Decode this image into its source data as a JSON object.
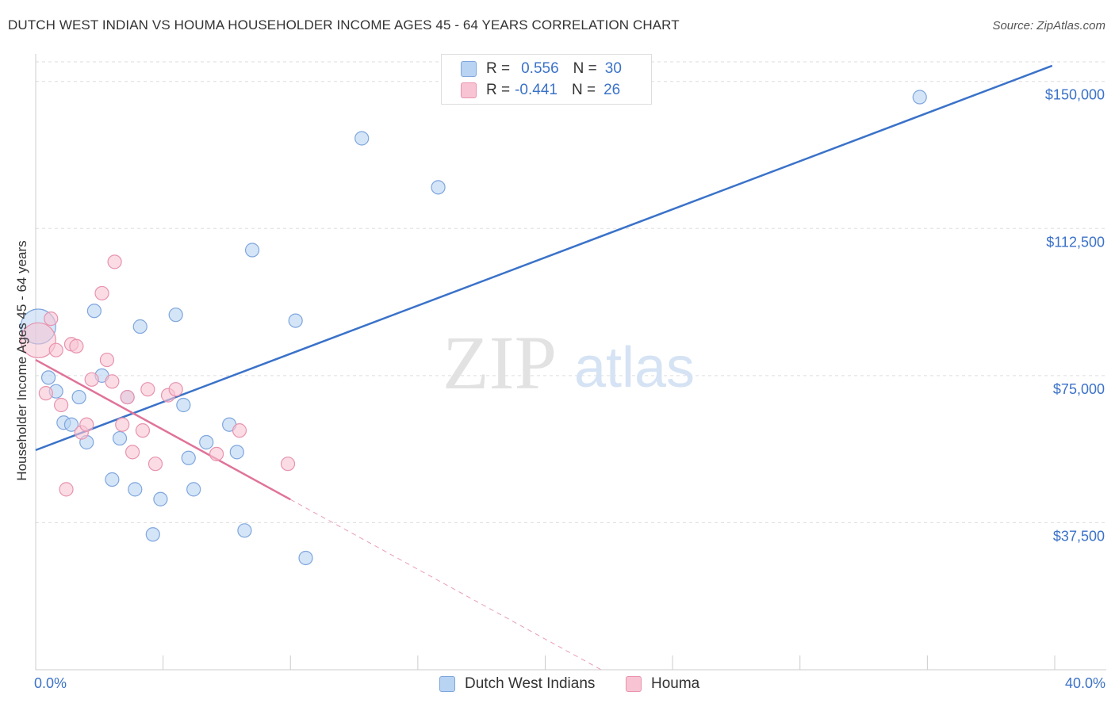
{
  "title": "DUTCH WEST INDIAN VS HOUMA HOUSEHOLDER INCOME AGES 45 - 64 YEARS CORRELATION CHART",
  "source": "Source: ZipAtlas.com",
  "watermark": {
    "zip": "ZIP",
    "atlas": "atlas"
  },
  "legend": {
    "rows": [
      {
        "r_label": "R =",
        "r_value": "0.556",
        "n_label": "N =",
        "n_value": "30"
      },
      {
        "r_label": "R =",
        "r_value": "-0.441",
        "n_label": "N =",
        "n_value": "26"
      }
    ]
  },
  "colors": {
    "blue_fill": "#b9d3f3",
    "blue_stroke": "#7ea6dd",
    "blue_line": "#3a72c9",
    "pink_fill": "#f8c4d3",
    "pink_stroke": "#e893ae",
    "pink_line": "#e07399",
    "grid": "#dddddd",
    "axis_label": "#3b72c8"
  },
  "chart_data": {
    "type": "scatter",
    "title": "DUTCH WEST INDIAN VS HOUMA HOUSEHOLDER INCOME AGES 45 - 64 YEARS CORRELATION CHART",
    "xlabel": "",
    "ylabel": "Householder Income Ages 45 - 64 years",
    "xlim": [
      0,
      40
    ],
    "ylim": [
      0,
      155000
    ],
    "x_tick_labels": [
      "0.0%",
      "40.0%"
    ],
    "y_ticks": [
      {
        "value": 37500,
        "label": "$37,500"
      },
      {
        "value": 75000,
        "label": "$75,000"
      },
      {
        "value": 112500,
        "label": "$112,500"
      },
      {
        "value": 150000,
        "label": "$150,000"
      }
    ],
    "series": [
      {
        "name": "Dutch West Indians",
        "color_key": "blue",
        "r": 0.556,
        "n": 30,
        "trend": {
          "x": [
            0,
            39.9
          ],
          "y": [
            56000,
            154000
          ],
          "solid_until": 39.9
        },
        "points": [
          {
            "x": 0.1,
            "y": 87500,
            "big": true
          },
          {
            "x": 0.5,
            "y": 74500
          },
          {
            "x": 0.8,
            "y": 71000
          },
          {
            "x": 1.1,
            "y": 63000
          },
          {
            "x": 1.4,
            "y": 62500
          },
          {
            "x": 1.7,
            "y": 69500
          },
          {
            "x": 2.0,
            "y": 58000
          },
          {
            "x": 2.3,
            "y": 91500
          },
          {
            "x": 2.6,
            "y": 75000
          },
          {
            "x": 3.0,
            "y": 48500
          },
          {
            "x": 3.3,
            "y": 59000
          },
          {
            "x": 3.6,
            "y": 69500
          },
          {
            "x": 3.9,
            "y": 46000
          },
          {
            "x": 4.1,
            "y": 87500
          },
          {
            "x": 4.6,
            "y": 34500
          },
          {
            "x": 4.9,
            "y": 43500
          },
          {
            "x": 5.5,
            "y": 90500
          },
          {
            "x": 5.8,
            "y": 67500
          },
          {
            "x": 6.0,
            "y": 54000
          },
          {
            "x": 6.2,
            "y": 46000
          },
          {
            "x": 6.7,
            "y": 58000
          },
          {
            "x": 7.6,
            "y": 62500
          },
          {
            "x": 7.9,
            "y": 55500
          },
          {
            "x": 8.2,
            "y": 35500
          },
          {
            "x": 8.5,
            "y": 107000
          },
          {
            "x": 10.2,
            "y": 89000
          },
          {
            "x": 10.6,
            "y": 28500
          },
          {
            "x": 12.8,
            "y": 135500
          },
          {
            "x": 15.8,
            "y": 123000
          },
          {
            "x": 34.7,
            "y": 146000
          }
        ]
      },
      {
        "name": "Houma",
        "color_key": "pink",
        "r": -0.441,
        "n": 26,
        "trend": {
          "x": [
            0,
            22.2
          ],
          "y": [
            79000,
            0
          ],
          "solid_until": 10.0
        },
        "points": [
          {
            "x": 0.1,
            "y": 84000,
            "big": true
          },
          {
            "x": 0.4,
            "y": 70500
          },
          {
            "x": 0.6,
            "y": 89500
          },
          {
            "x": 0.8,
            "y": 81500
          },
          {
            "x": 1.0,
            "y": 67500
          },
          {
            "x": 1.2,
            "y": 46000
          },
          {
            "x": 1.4,
            "y": 83000
          },
          {
            "x": 1.6,
            "y": 82500
          },
          {
            "x": 1.8,
            "y": 60500
          },
          {
            "x": 2.0,
            "y": 62500
          },
          {
            "x": 2.2,
            "y": 74000
          },
          {
            "x": 2.6,
            "y": 96000
          },
          {
            "x": 2.8,
            "y": 79000
          },
          {
            "x": 3.0,
            "y": 73500
          },
          {
            "x": 3.1,
            "y": 104000
          },
          {
            "x": 3.4,
            "y": 62500
          },
          {
            "x": 3.6,
            "y": 69500
          },
          {
            "x": 3.8,
            "y": 55500
          },
          {
            "x": 4.2,
            "y": 61000
          },
          {
            "x": 4.4,
            "y": 71500
          },
          {
            "x": 4.7,
            "y": 52500
          },
          {
            "x": 5.2,
            "y": 70000
          },
          {
            "x": 5.5,
            "y": 71500
          },
          {
            "x": 7.1,
            "y": 55000
          },
          {
            "x": 8.0,
            "y": 61000
          },
          {
            "x": 9.9,
            "y": 52500
          }
        ]
      }
    ]
  }
}
